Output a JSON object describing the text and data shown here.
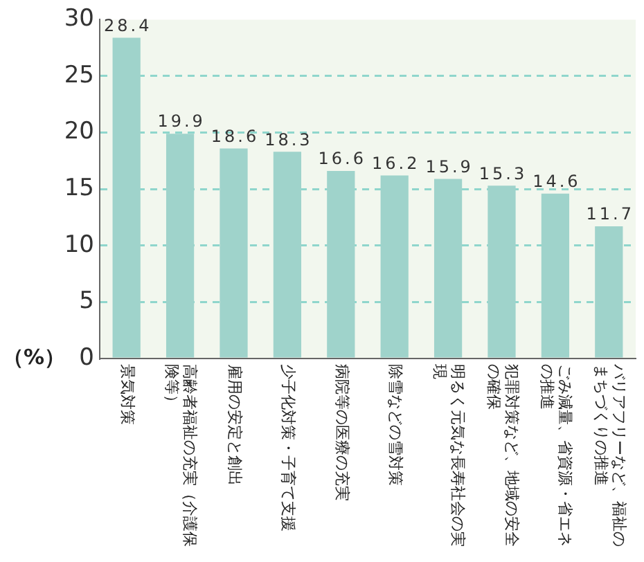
{
  "chart_data": {
    "type": "bar",
    "ylabel": "（%）",
    "categories": [
      "景気対策",
      "高齢者福祉の充実（介護保険等）",
      "雇用の安定と創出",
      "少子化対策・子育て支援",
      "病院等の医療の充実",
      "除雪などの雪対策",
      "明るく元気な長寿社会の実現",
      "犯罪対策など、地域の安全の確保",
      "ごみ減量、省資源・省エネの推進",
      "バリアフリーなど、福祉のまちづくりの推進"
    ],
    "values": [
      28.4,
      19.9,
      18.6,
      18.3,
      16.6,
      16.2,
      15.9,
      15.3,
      14.6,
      11.7
    ],
    "color": "#9fd3cb",
    "ylim": [
      0,
      30
    ],
    "yticks": [
      0,
      5,
      10,
      15,
      20,
      25,
      30
    ],
    "grid": "y",
    "data_labels": true,
    "legend": false
  }
}
